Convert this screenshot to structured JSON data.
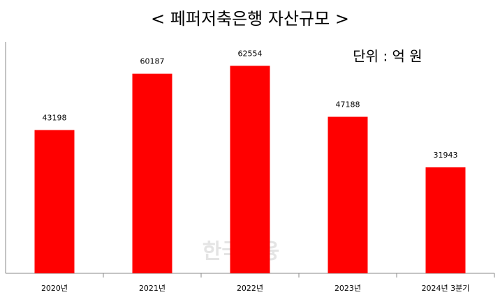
{
  "chart_data": {
    "type": "bar",
    "title": "< 페퍼저축은행 자산규모 >",
    "annotation": "단위 : 억 원",
    "watermark": "한국금융",
    "categories": [
      "2020년",
      "2021년",
      "2022년",
      "2023년",
      "2024년 3분기"
    ],
    "values": [
      43198,
      60187,
      62554,
      47188,
      31943
    ],
    "color": "#ff0000",
    "ylim": [
      0,
      70000
    ],
    "grid": false
  }
}
